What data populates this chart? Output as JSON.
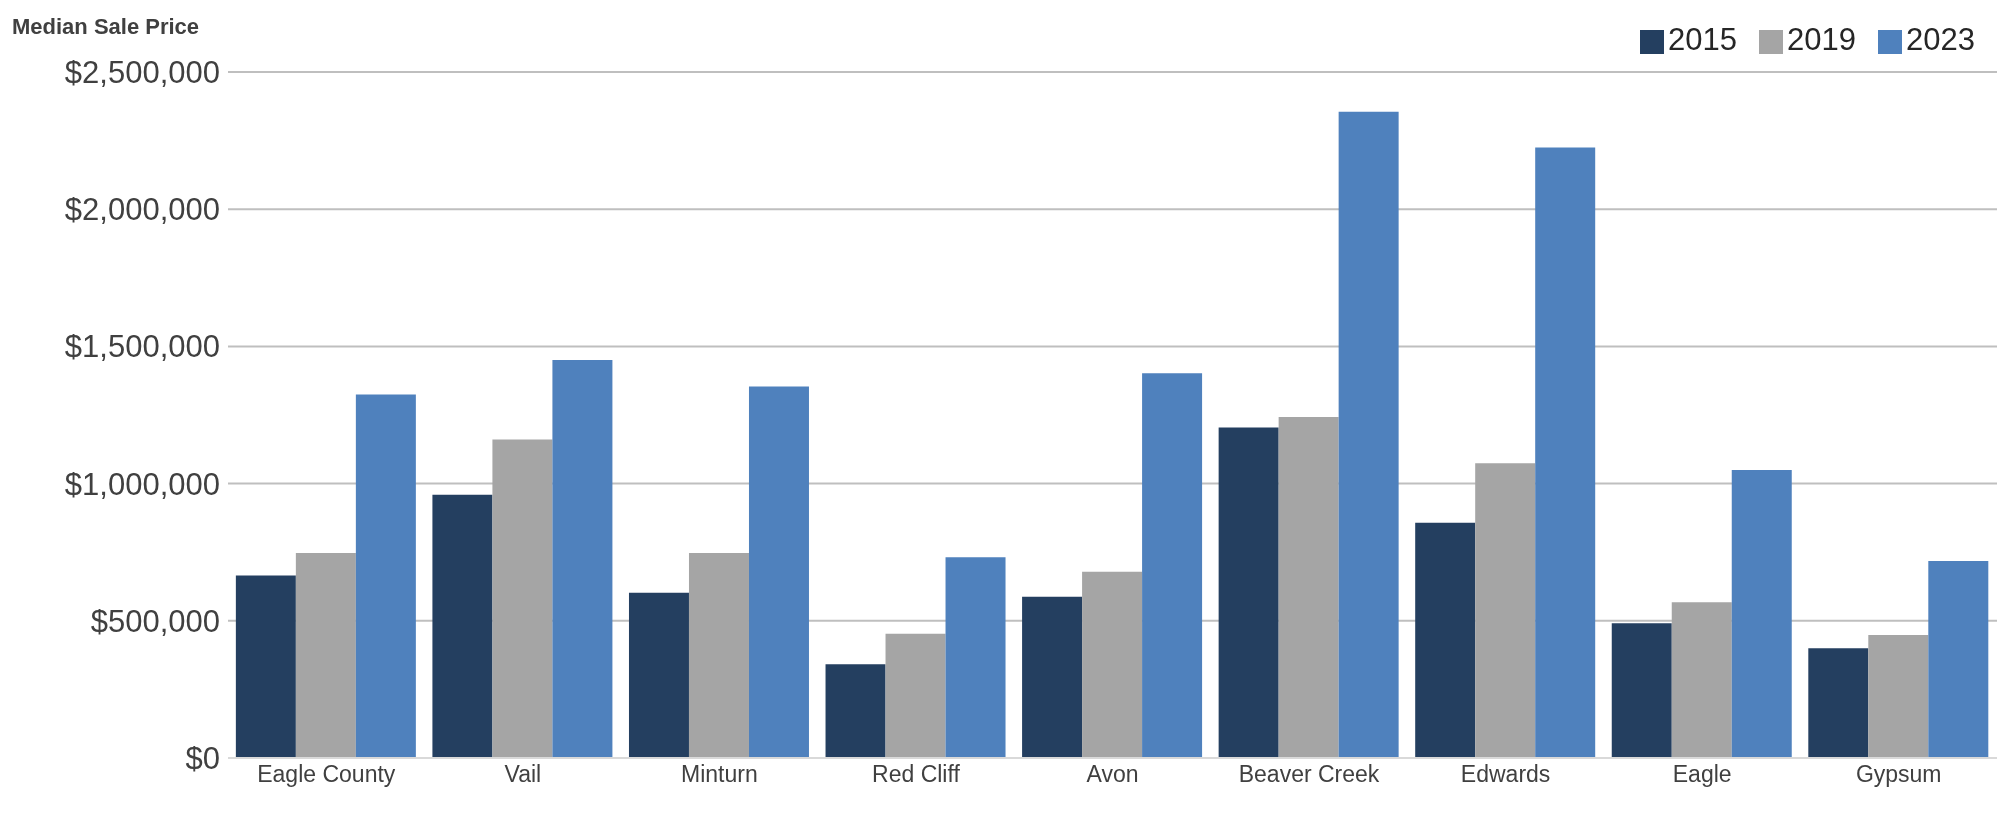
{
  "chart_data": {
    "type": "bar",
    "title": "Median Sale Price",
    "categories": [
      "Eagle County",
      "Vail",
      "Minturn",
      "Red Cliff",
      "Avon",
      "Beaver Creek",
      "Edwards",
      "Eagle",
      "Gypsum"
    ],
    "series": [
      {
        "name": "2015",
        "color": "#243f60",
        "values": [
          665000,
          959000,
          602000,
          342000,
          588000,
          1204000,
          857000,
          491000,
          400000
        ]
      },
      {
        "name": "2019",
        "color": "#a5a5a5",
        "values": [
          747000,
          1161000,
          747000,
          453000,
          679000,
          1243000,
          1074000,
          568000,
          448000
        ]
      },
      {
        "name": "2023",
        "color": "#4f81bd",
        "values": [
          1325000,
          1450000,
          1354000,
          732000,
          1402000,
          2355000,
          2225000,
          1050000,
          718000
        ]
      }
    ],
    "ylim": [
      0,
      2500000
    ],
    "yticks": [
      {
        "value": 0,
        "label": "$0"
      },
      {
        "value": 500000,
        "label": "$500,000"
      },
      {
        "value": 1000000,
        "label": "$1,000,000"
      },
      {
        "value": 1500000,
        "label": "$1,500,000"
      },
      {
        "value": 2000000,
        "label": "$2,000,000"
      },
      {
        "value": 2500000,
        "label": "$2,500,000"
      }
    ],
    "grid": "y",
    "legend": "top right"
  }
}
